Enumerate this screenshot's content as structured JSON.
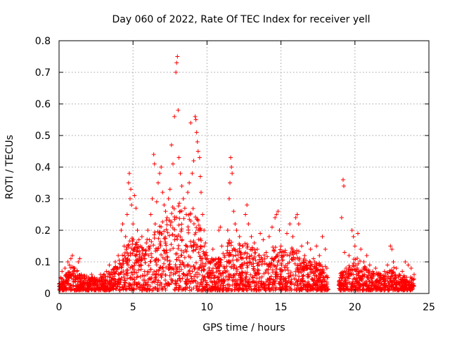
{
  "chart_data": {
    "type": "scatter",
    "title": "Day 060 of 2022, Rate Of TEC Index for receiver yell",
    "xlabel": "GPS time / hours",
    "ylabel": "ROTI / TECUs",
    "xlim": [
      0,
      25
    ],
    "ylim": [
      0,
      0.8
    ],
    "xticks": [
      0,
      5,
      10,
      15,
      20,
      25
    ],
    "xtick_labels": [
      "0",
      "5",
      "10",
      "15",
      "20",
      "25"
    ],
    "yticks": [
      0,
      0.1,
      0.2,
      0.3,
      0.4,
      0.5,
      0.6,
      0.7,
      0.8
    ],
    "ytick_labels": [
      "0",
      "0.1",
      "0.2",
      "0.3",
      "0.4",
      "0.5",
      "0.6",
      "0.7",
      "0.8"
    ],
    "grid": true,
    "marker": "plus",
    "color": "#ff0000",
    "series": [
      {
        "name": "ROTI",
        "points": [
          [
            0.0,
            0.03
          ],
          [
            0.1,
            0.05
          ],
          [
            0.2,
            0.07
          ],
          [
            0.3,
            0.04
          ],
          [
            0.4,
            0.08
          ],
          [
            0.5,
            0.06
          ],
          [
            0.6,
            0.1
          ],
          [
            0.7,
            0.09
          ],
          [
            0.8,
            0.11
          ],
          [
            0.9,
            0.12
          ],
          [
            1.0,
            0.08
          ],
          [
            1.1,
            0.05
          ],
          [
            1.2,
            0.07
          ],
          [
            1.3,
            0.1
          ],
          [
            1.4,
            0.11
          ],
          [
            1.5,
            0.06
          ],
          [
            1.6,
            0.03
          ],
          [
            1.8,
            0.04
          ],
          [
            2.0,
            0.05
          ],
          [
            2.2,
            0.06
          ],
          [
            2.4,
            0.05
          ],
          [
            2.6,
            0.04
          ],
          [
            2.8,
            0.06
          ],
          [
            3.0,
            0.05
          ],
          [
            3.2,
            0.07
          ],
          [
            3.4,
            0.09
          ],
          [
            3.6,
            0.06
          ],
          [
            3.8,
            0.1
          ],
          [
            4.0,
            0.12
          ],
          [
            4.2,
            0.2
          ],
          [
            4.3,
            0.22
          ],
          [
            4.4,
            0.15
          ],
          [
            4.5,
            0.18
          ],
          [
            4.6,
            0.25
          ],
          [
            4.7,
            0.35
          ],
          [
            4.75,
            0.38
          ],
          [
            4.8,
            0.3
          ],
          [
            4.85,
            0.33
          ],
          [
            4.9,
            0.28
          ],
          [
            5.0,
            0.22
          ],
          [
            5.1,
            0.31
          ],
          [
            5.2,
            0.27
          ],
          [
            5.3,
            0.2
          ],
          [
            5.4,
            0.17
          ],
          [
            5.5,
            0.15
          ],
          [
            5.6,
            0.18
          ],
          [
            5.7,
            0.14
          ],
          [
            5.8,
            0.12
          ],
          [
            5.9,
            0.16
          ],
          [
            6.0,
            0.2
          ],
          [
            6.1,
            0.17
          ],
          [
            6.2,
            0.25
          ],
          [
            6.3,
            0.3
          ],
          [
            6.4,
            0.44
          ],
          [
            6.45,
            0.41
          ],
          [
            6.5,
            0.22
          ],
          [
            6.6,
            0.29
          ],
          [
            6.7,
            0.35
          ],
          [
            6.8,
            0.38
          ],
          [
            6.9,
            0.4
          ],
          [
            7.0,
            0.32
          ],
          [
            7.1,
            0.28
          ],
          [
            7.2,
            0.26
          ],
          [
            7.3,
            0.24
          ],
          [
            7.4,
            0.3
          ],
          [
            7.5,
            0.33
          ],
          [
            7.6,
            0.47
          ],
          [
            7.7,
            0.41
          ],
          [
            7.8,
            0.56
          ],
          [
            7.9,
            0.7
          ],
          [
            7.95,
            0.73
          ],
          [
            8.0,
            0.75
          ],
          [
            8.05,
            0.58
          ],
          [
            8.1,
            0.43
          ],
          [
            8.2,
            0.38
          ],
          [
            8.3,
            0.34
          ],
          [
            8.4,
            0.3
          ],
          [
            8.5,
            0.27
          ],
          [
            8.6,
            0.25
          ],
          [
            8.7,
            0.32
          ],
          [
            8.8,
            0.35
          ],
          [
            8.9,
            0.54
          ],
          [
            9.0,
            0.38
          ],
          [
            9.1,
            0.42
          ],
          [
            9.2,
            0.56
          ],
          [
            9.25,
            0.55
          ],
          [
            9.3,
            0.51
          ],
          [
            9.35,
            0.48
          ],
          [
            9.4,
            0.45
          ],
          [
            9.5,
            0.43
          ],
          [
            9.55,
            0.37
          ],
          [
            9.6,
            0.32
          ],
          [
            9.7,
            0.25
          ],
          [
            9.8,
            0.2
          ],
          [
            9.9,
            0.16
          ],
          [
            10.0,
            0.12
          ],
          [
            10.2,
            0.1
          ],
          [
            10.4,
            0.14
          ],
          [
            10.6,
            0.11
          ],
          [
            10.8,
            0.2
          ],
          [
            10.9,
            0.21
          ],
          [
            11.0,
            0.15
          ],
          [
            11.2,
            0.12
          ],
          [
            11.4,
            0.2
          ],
          [
            11.5,
            0.3
          ],
          [
            11.55,
            0.35
          ],
          [
            11.6,
            0.43
          ],
          [
            11.65,
            0.4
          ],
          [
            11.7,
            0.38
          ],
          [
            11.8,
            0.26
          ],
          [
            11.9,
            0.22
          ],
          [
            12.0,
            0.2
          ],
          [
            12.2,
            0.18
          ],
          [
            12.4,
            0.15
          ],
          [
            12.6,
            0.25
          ],
          [
            12.7,
            0.28
          ],
          [
            12.8,
            0.22
          ],
          [
            13.0,
            0.18
          ],
          [
            13.2,
            0.16
          ],
          [
            13.4,
            0.14
          ],
          [
            13.6,
            0.19
          ],
          [
            13.8,
            0.17
          ],
          [
            14.0,
            0.13
          ],
          [
            14.2,
            0.18
          ],
          [
            14.4,
            0.21
          ],
          [
            14.6,
            0.24
          ],
          [
            14.7,
            0.25
          ],
          [
            14.8,
            0.26
          ],
          [
            14.9,
            0.2
          ],
          [
            15.0,
            0.15
          ],
          [
            15.2,
            0.12
          ],
          [
            15.4,
            0.19
          ],
          [
            15.6,
            0.22
          ],
          [
            15.8,
            0.18
          ],
          [
            16.0,
            0.24
          ],
          [
            16.1,
            0.25
          ],
          [
            16.2,
            0.22
          ],
          [
            16.4,
            0.15
          ],
          [
            16.6,
            0.12
          ],
          [
            16.8,
            0.16
          ],
          [
            17.0,
            0.14
          ],
          [
            17.2,
            0.11
          ],
          [
            17.4,
            0.15
          ],
          [
            17.6,
            0.12
          ],
          [
            17.8,
            0.18
          ],
          [
            18.0,
            0.14
          ],
          [
            18.1,
            0.08
          ],
          [
            19.0,
            0.05
          ],
          [
            19.1,
            0.24
          ],
          [
            19.2,
            0.36
          ],
          [
            19.25,
            0.34
          ],
          [
            19.3,
            0.13
          ],
          [
            19.4,
            0.08
          ],
          [
            19.6,
            0.12
          ],
          [
            19.8,
            0.2
          ],
          [
            19.9,
            0.18
          ],
          [
            20.0,
            0.15
          ],
          [
            20.2,
            0.19
          ],
          [
            20.4,
            0.14
          ],
          [
            20.6,
            0.1
          ],
          [
            20.8,
            0.12
          ],
          [
            21.0,
            0.09
          ],
          [
            21.2,
            0.07
          ],
          [
            21.4,
            0.08
          ],
          [
            21.6,
            0.06
          ],
          [
            21.8,
            0.05
          ],
          [
            22.0,
            0.07
          ],
          [
            22.2,
            0.09
          ],
          [
            22.4,
            0.15
          ],
          [
            22.5,
            0.14
          ],
          [
            22.6,
            0.1
          ],
          [
            22.8,
            0.08
          ],
          [
            23.0,
            0.06
          ],
          [
            23.2,
            0.07
          ],
          [
            23.4,
            0.1
          ],
          [
            23.6,
            0.09
          ],
          [
            23.8,
            0.08
          ],
          [
            24.0,
            0.06
          ]
        ]
      }
    ],
    "background_density": {
      "segments": [
        {
          "x_range": [
            0.0,
            18.2
          ],
          "floor": 0.01
        },
        {
          "x_range": [
            18.9,
            24.0
          ],
          "floor": 0.01
        }
      ],
      "envelope": [
        [
          0.0,
          0.05
        ],
        [
          1.0,
          0.09
        ],
        [
          1.5,
          0.06
        ],
        [
          2.5,
          0.05
        ],
        [
          3.5,
          0.07
        ],
        [
          4.0,
          0.1
        ],
        [
          4.5,
          0.15
        ],
        [
          5.0,
          0.18
        ],
        [
          5.5,
          0.15
        ],
        [
          6.0,
          0.18
        ],
        [
          6.5,
          0.2
        ],
        [
          7.0,
          0.24
        ],
        [
          7.5,
          0.27
        ],
        [
          8.0,
          0.3
        ],
        [
          8.5,
          0.25
        ],
        [
          9.0,
          0.28
        ],
        [
          9.5,
          0.22
        ],
        [
          10.0,
          0.12
        ],
        [
          10.5,
          0.11
        ],
        [
          11.0,
          0.12
        ],
        [
          11.5,
          0.17
        ],
        [
          12.0,
          0.15
        ],
        [
          12.5,
          0.17
        ],
        [
          13.0,
          0.15
        ],
        [
          13.5,
          0.13
        ],
        [
          14.0,
          0.12
        ],
        [
          14.5,
          0.15
        ],
        [
          15.0,
          0.14
        ],
        [
          15.5,
          0.14
        ],
        [
          16.0,
          0.15
        ],
        [
          16.5,
          0.11
        ],
        [
          17.0,
          0.11
        ],
        [
          17.5,
          0.1
        ],
        [
          18.0,
          0.09
        ],
        [
          18.2,
          0.06
        ],
        [
          18.9,
          0.06
        ],
        [
          19.5,
          0.08
        ],
        [
          20.0,
          0.12
        ],
        [
          20.5,
          0.1
        ],
        [
          21.0,
          0.07
        ],
        [
          22.0,
          0.06
        ],
        [
          22.5,
          0.09
        ],
        [
          23.0,
          0.06
        ],
        [
          24.0,
          0.05
        ]
      ]
    }
  }
}
